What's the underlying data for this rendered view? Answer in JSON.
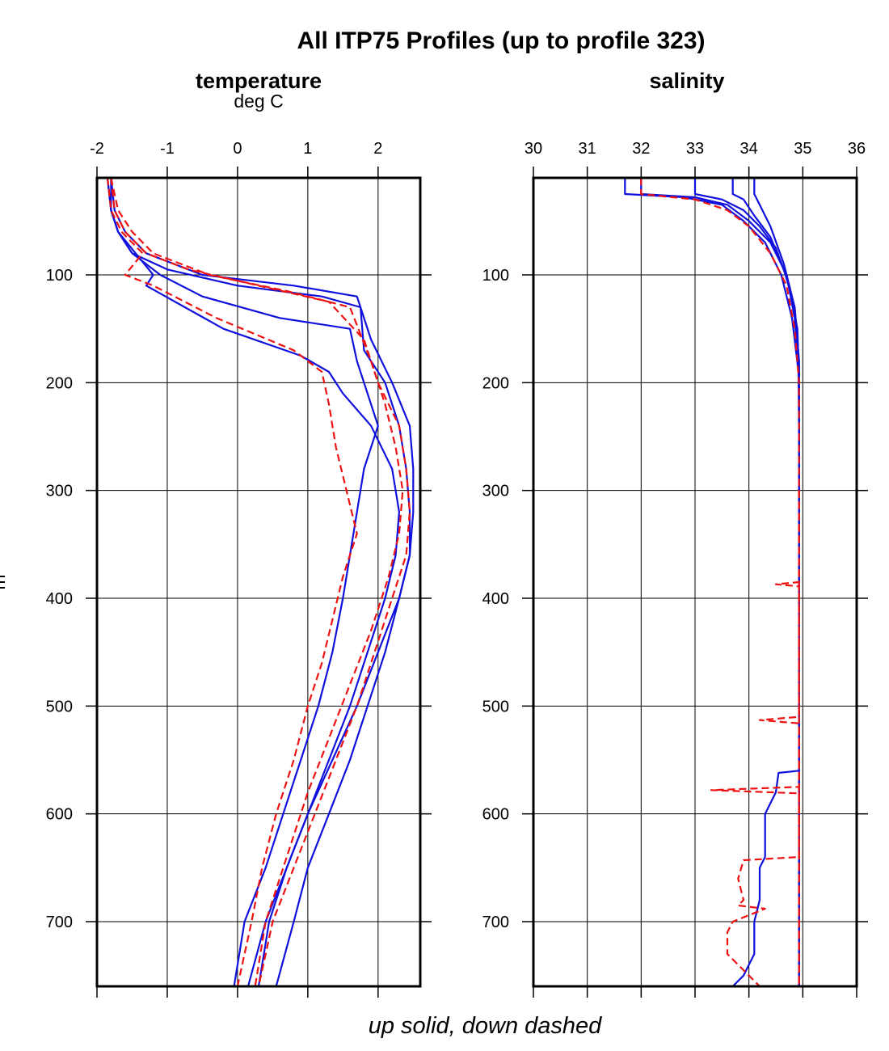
{
  "figure": {
    "title": "All ITP75 Profiles (up to profile 323)",
    "footer": "up solid, down dashed",
    "ylabel": "m"
  },
  "legend": {
    "up": {
      "style": "solid",
      "color": "#1010dd"
    },
    "down": {
      "style": "dashed",
      "color": "#ee1111"
    }
  },
  "chart_data": [
    {
      "type": "line",
      "title": "temperature",
      "subtitle": "deg C",
      "xlim": [
        -2.0,
        2.6
      ],
      "ylim": [
        760,
        10
      ],
      "y_inverted": true,
      "xticks": [
        -2,
        -1,
        0,
        1,
        2
      ],
      "yticks": [
        100,
        200,
        300,
        400,
        500,
        600,
        700
      ],
      "grid": true,
      "series": [
        {
          "style": "up",
          "x": [
            -1.8,
            -1.8,
            -1.7,
            -1.5,
            -1.0,
            0.0,
            1.2,
            1.75,
            1.8,
            2.1,
            2.3,
            2.4,
            2.45,
            2.45,
            2.3,
            2.0,
            1.7,
            1.35,
            1.0,
            0.7,
            0.4,
            0.15
          ],
          "y": [
            10,
            40,
            60,
            80,
            95,
            110,
            120,
            130,
            170,
            200,
            240,
            280,
            320,
            360,
            400,
            450,
            500,
            550,
            600,
            650,
            700,
            760
          ]
        },
        {
          "style": "up",
          "x": [
            -1.85,
            -1.8,
            -1.7,
            -1.5,
            -1.1,
            -0.5,
            0.6,
            1.6,
            1.7,
            1.8,
            2.0,
            1.8,
            1.7,
            1.6,
            1.5,
            1.35,
            1.15,
            0.9,
            0.65,
            0.4,
            0.1,
            -0.05
          ],
          "y": [
            10,
            40,
            60,
            80,
            100,
            120,
            140,
            150,
            180,
            200,
            240,
            280,
            320,
            360,
            400,
            450,
            500,
            550,
            600,
            650,
            700,
            760
          ]
        },
        {
          "style": "up",
          "x": [
            -1.8,
            -1.75,
            -1.6,
            -1.3,
            -0.5,
            0.8,
            1.7,
            1.9,
            2.2,
            2.45,
            2.5,
            2.5,
            2.45,
            2.3,
            2.1,
            1.85,
            1.6,
            1.3,
            1.0,
            0.8,
            0.55
          ],
          "y": [
            10,
            40,
            60,
            80,
            100,
            110,
            120,
            160,
            200,
            240,
            280,
            320,
            360,
            400,
            450,
            500,
            550,
            600,
            650,
            700,
            760
          ]
        },
        {
          "style": "up",
          "x": [
            -1.85,
            -1.8,
            -1.7,
            -1.45,
            -1.2,
            -1.3,
            -0.2,
            0.9,
            1.3,
            1.5,
            1.9,
            2.2,
            2.3,
            2.25,
            2.1,
            1.85,
            1.6,
            1.3,
            1.0,
            0.7,
            0.45,
            0.3
          ],
          "y": [
            10,
            40,
            60,
            80,
            100,
            110,
            150,
            175,
            190,
            210,
            240,
            280,
            320,
            360,
            400,
            450,
            500,
            550,
            600,
            650,
            700,
            760
          ]
        },
        {
          "style": "down",
          "x": [
            -1.8,
            -1.75,
            -1.6,
            -1.3,
            -0.7,
            0.3,
            1.3,
            1.8,
            2.0,
            2.3,
            2.4,
            2.45,
            2.4,
            2.2,
            1.95,
            1.7,
            1.4,
            1.1,
            0.8,
            0.5,
            0.3
          ],
          "y": [
            10,
            40,
            60,
            80,
            95,
            110,
            125,
            160,
            200,
            240,
            280,
            320,
            360,
            400,
            450,
            500,
            550,
            600,
            650,
            700,
            760
          ]
        },
        {
          "style": "down",
          "x": [
            -1.85,
            -1.8,
            -1.65,
            -1.35,
            -1.6,
            -1.2,
            -0.3,
            0.8,
            1.2,
            1.3,
            1.4,
            1.55,
            1.7,
            1.5,
            1.35,
            1.2,
            1.0,
            0.8,
            0.55,
            0.35,
            0.2,
            0.0
          ],
          "y": [
            10,
            40,
            60,
            80,
            100,
            110,
            140,
            170,
            190,
            220,
            260,
            300,
            340,
            380,
            420,
            460,
            500,
            550,
            600,
            650,
            700,
            760
          ]
        },
        {
          "style": "down",
          "x": [
            -1.8,
            -1.7,
            -1.5,
            -1.2,
            -0.4,
            0.7,
            1.6,
            1.9,
            2.1,
            2.25,
            2.35,
            2.3,
            2.15,
            1.9,
            1.6,
            1.3,
            1.0,
            0.7,
            0.4,
            0.25
          ],
          "y": [
            10,
            40,
            60,
            80,
            100,
            115,
            130,
            180,
            220,
            260,
            300,
            340,
            380,
            430,
            480,
            530,
            580,
            640,
            700,
            760
          ]
        }
      ]
    },
    {
      "type": "line",
      "title": "salinity",
      "subtitle": "",
      "xlim": [
        30,
        36
      ],
      "ylim": [
        760,
        10
      ],
      "y_inverted": true,
      "xticks": [
        30,
        31,
        32,
        33,
        34,
        35,
        36
      ],
      "yticks": [
        100,
        200,
        300,
        400,
        500,
        600,
        700
      ],
      "grid": true,
      "series": [
        {
          "style": "up",
          "x": [
            31.7,
            31.7,
            32.8,
            33.5,
            33.9,
            34.3,
            34.6,
            34.8,
            34.92,
            34.93,
            34.93,
            34.93,
            34.93,
            34.93
          ],
          "y": [
            10,
            25,
            28,
            35,
            50,
            70,
            100,
            140,
            190,
            250,
            400,
            550,
            650,
            760
          ]
        },
        {
          "style": "up",
          "x": [
            32.0,
            32.0,
            33.0,
            33.6,
            34.0,
            34.4,
            34.7,
            34.85,
            34.93,
            34.93,
            34.93
          ],
          "y": [
            10,
            25,
            28,
            35,
            50,
            70,
            100,
            140,
            190,
            400,
            760
          ]
        },
        {
          "style": "up",
          "x": [
            33.0,
            33.0,
            33.5,
            33.9,
            34.2,
            34.5,
            34.75,
            34.9,
            34.93,
            34.93
          ],
          "y": [
            10,
            25,
            30,
            40,
            55,
            75,
            110,
            150,
            200,
            760
          ]
        },
        {
          "style": "up",
          "x": [
            33.7,
            33.7,
            33.9,
            34.1,
            34.4,
            34.65,
            34.85,
            34.93,
            34.93
          ],
          "y": [
            10,
            25,
            30,
            45,
            65,
            95,
            130,
            180,
            760
          ]
        },
        {
          "style": "up",
          "x": [
            34.1,
            34.1,
            34.2,
            34.4,
            34.65,
            34.85,
            34.93,
            34.93
          ],
          "y": [
            10,
            25,
            35,
            55,
            90,
            130,
            180,
            760
          ]
        },
        {
          "style": "up",
          "x": [
            34.93,
            34.93,
            34.55,
            34.5,
            34.3,
            34.3,
            34.2,
            34.2,
            34.1,
            34.1,
            34.0,
            33.9,
            33.7
          ],
          "y": [
            300,
            560,
            562,
            580,
            600,
            640,
            650,
            680,
            700,
            730,
            740,
            750,
            760
          ]
        },
        {
          "style": "down",
          "x": [
            32.0,
            32.0,
            33.0,
            33.6,
            34.0,
            34.4,
            34.7,
            34.85,
            34.93,
            34.93
          ],
          "y": [
            10,
            25,
            30,
            40,
            55,
            80,
            110,
            150,
            200,
            760
          ]
        },
        {
          "style": "down",
          "x": [
            34.93,
            34.93,
            34.5,
            34.93,
            34.93,
            34.2,
            34.93,
            34.93,
            33.3,
            34.93,
            34.93
          ],
          "y": [
            300,
            385,
            387,
            389,
            510,
            513,
            516,
            575,
            578,
            581,
            760
          ]
        },
        {
          "style": "down",
          "x": [
            34.93,
            34.93,
            33.9,
            33.8,
            33.9,
            33.8,
            34.3,
            33.7,
            33.6,
            33.6,
            33.9,
            34.2
          ],
          "y": [
            580,
            640,
            643,
            660,
            680,
            685,
            688,
            700,
            710,
            730,
            745,
            760
          ]
        }
      ]
    }
  ]
}
